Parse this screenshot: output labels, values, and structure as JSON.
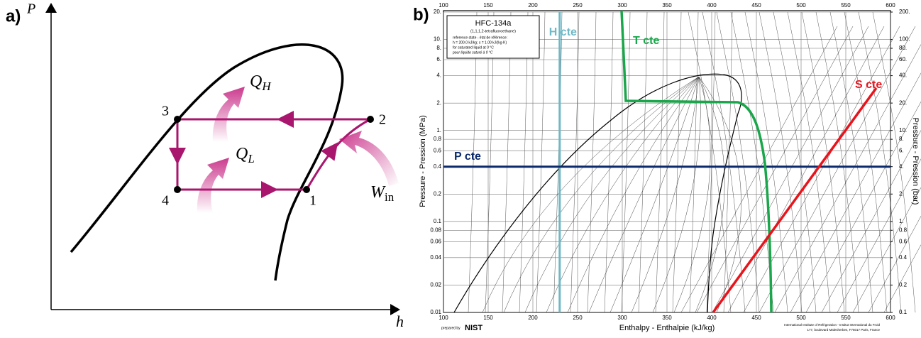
{
  "panel_a": {
    "panel_label": "a)",
    "y_label": "P",
    "x_label": "h",
    "points": [
      "1",
      "2",
      "3",
      "4"
    ],
    "heat_labels": [
      {
        "symbol": "Q",
        "subscript": "H"
      },
      {
        "symbol": "Q",
        "subscript": "L"
      },
      {
        "symbol": "W",
        "subscript": "in"
      }
    ]
  },
  "panel_b": {
    "panel_label": "b)",
    "chart_data": {
      "type": "line",
      "title": "HFC-134a",
      "subtitle": "(1,1,1,2-tetrafluoroethane)",
      "reference_note": [
        "reference state - état de référence:",
        "h = 200.0 kJ/kg;  s = 1.00 kJ/(kg·K)",
        "for saturated liquid at 0 °C",
        "pour liquide saturé à 0 °C"
      ],
      "x_label": "Enthalpy - Enthalpie (kJ/kg)",
      "y_label": "Pressure - Pression (MPa)",
      "y2_label": "Pressure - Pression (bar)",
      "xlim": [
        100,
        600
      ],
      "xticks": [
        100,
        150,
        200,
        250,
        300,
        350,
        400,
        450,
        500,
        550,
        600
      ],
      "ylim": [
        0.01,
        20
      ],
      "log_y": true,
      "yticks": [
        {
          "value": 20,
          "label": "20."
        },
        {
          "value": 10,
          "label": "10."
        },
        {
          "value": 8,
          "label": "8."
        },
        {
          "value": 6,
          "label": "6."
        },
        {
          "value": 4,
          "label": "4."
        },
        {
          "value": 2,
          "label": "2."
        },
        {
          "value": 1,
          "label": "1."
        },
        0.8,
        0.6,
        0.4,
        0.2,
        0.1,
        0.08,
        0.06,
        0.04,
        0.02,
        0.01
      ],
      "y2lim": [
        0.1,
        200
      ],
      "y2ticks": [
        {
          "value": 200,
          "label": "200."
        },
        {
          "value": 100,
          "label": "100."
        },
        {
          "value": 80,
          "label": "80."
        },
        {
          "value": 60,
          "label": "60."
        },
        {
          "value": 40,
          "label": "40."
        },
        {
          "value": 20,
          "label": "20."
        },
        {
          "value": 10,
          "label": "10."
        },
        {
          "value": 8,
          "label": "8."
        },
        {
          "value": 6,
          "label": "6."
        },
        {
          "value": 4,
          "label": "4."
        },
        {
          "value": 2,
          "label": "2."
        },
        {
          "value": 1,
          "label": "1."
        },
        0.8,
        0.6,
        0.4,
        0.2,
        0.1
      ],
      "constant_lines": [
        {
          "name": "H cte",
          "axis": "x",
          "value": 230,
          "color": "#6fb8c4"
        },
        {
          "name": "P cte",
          "axis": "y",
          "value": 0.4,
          "color": "#0b2a6b"
        }
      ],
      "curve_labels": [
        {
          "name": "T cte",
          "color": "#1aa64a"
        },
        {
          "name": "S cte",
          "color": "#e8141c"
        }
      ],
      "credits": [
        "prepared by",
        "NIST",
        "International Institute of Refrigeration - Institut International du Froid",
        "177, boulevard Malesherbes, F75017 Paris, France"
      ]
    }
  }
}
